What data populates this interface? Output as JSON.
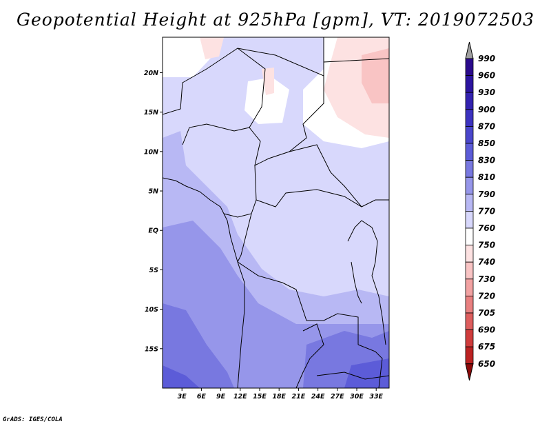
{
  "title": "Geopotential Height at 925hPa [gpm], VT: 2019072503",
  "credit": "GrADS: IGES/COLA",
  "map": {
    "lon_range": [
      0,
      35
    ],
    "lat_range": [
      -20,
      24.5
    ],
    "lat_ticks": [
      {
        "lat": 20,
        "label": "20N"
      },
      {
        "lat": 15,
        "label": "15N"
      },
      {
        "lat": 10,
        "label": "10N"
      },
      {
        "lat": 5,
        "label": "5N"
      },
      {
        "lat": 0,
        "label": "EQ"
      },
      {
        "lat": -5,
        "label": "5S"
      },
      {
        "lat": -10,
        "label": "10S"
      },
      {
        "lat": -15,
        "label": "15S"
      }
    ],
    "lon_ticks": [
      {
        "lon": 3,
        "label": "3E"
      },
      {
        "lon": 6,
        "label": "6E"
      },
      {
        "lon": 9,
        "label": "9E"
      },
      {
        "lon": 12,
        "label": "12E"
      },
      {
        "lon": 15,
        "label": "15E"
      },
      {
        "lon": 18,
        "label": "18E"
      },
      {
        "lon": 21,
        "label": "21E"
      },
      {
        "lon": 24,
        "label": "24E"
      },
      {
        "lon": 27,
        "label": "27E"
      },
      {
        "lon": 30,
        "label": "30E"
      },
      {
        "lon": 33,
        "label": "33E"
      }
    ]
  },
  "colorbar": {
    "levels": [
      {
        "label": "990",
        "color": "#2a0a8c"
      },
      {
        "label": "960",
        "color": "#2c14a0"
      },
      {
        "label": "930",
        "color": "#3322b0"
      },
      {
        "label": "900",
        "color": "#3c32c0"
      },
      {
        "label": "870",
        "color": "#4a46cc"
      },
      {
        "label": "850",
        "color": "#5c5cd8"
      },
      {
        "label": "830",
        "color": "#7878e0"
      },
      {
        "label": "810",
        "color": "#9696ea"
      },
      {
        "label": "790",
        "color": "#b8b8f4"
      },
      {
        "label": "770",
        "color": "#d8d8fc"
      },
      {
        "label": "760",
        "color": "#ffffff"
      },
      {
        "label": "750",
        "color": "#fde2e2"
      },
      {
        "label": "740",
        "color": "#f9c4c4"
      },
      {
        "label": "730",
        "color": "#f2a2a2"
      },
      {
        "label": "720",
        "color": "#e98080"
      },
      {
        "label": "705",
        "color": "#de5e5e"
      },
      {
        "label": "690",
        "color": "#d03c3c"
      },
      {
        "label": "675",
        "color": "#bc2222"
      },
      {
        "label": "650",
        "color": "#a01414"
      }
    ],
    "top_arrow_color": "#a0a0a0",
    "bottom_arrow_color": "#8c0a0a"
  }
}
